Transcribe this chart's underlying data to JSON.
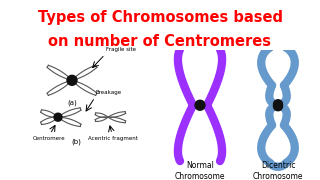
{
  "title_line1": "Types of Chromosomes based",
  "title_line2": "on number of Centromeres",
  "title_color": "#FF0000",
  "title_bg": "#FFE800",
  "bg_color": "#FFFFFF",
  "normal_chrom_color": "#9B30FF",
  "dicentric_chrom_color": "#6699CC",
  "centromere_color": "#111111",
  "label_normal": "Normal\nChromosome",
  "label_dicentric": "Dicentric\nChromosome",
  "label_a": "(a)",
  "label_b": "(b)",
  "label_fragile": "Fragile site",
  "label_breakage": "Breakage",
  "label_centromere": "Centromere",
  "label_acentric": "Acentric fragment"
}
